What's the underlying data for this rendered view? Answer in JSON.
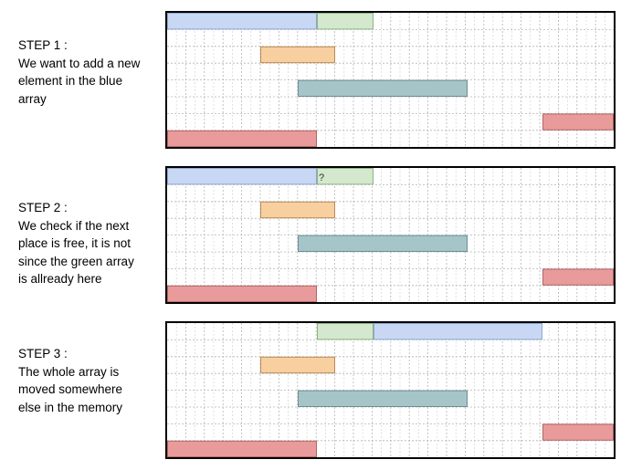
{
  "steps": [
    {
      "title": "STEP 1 :",
      "body": "We want to add a new\nelement in the blue\narray",
      "question_mark": ""
    },
    {
      "title": "STEP 2 :",
      "body": "We check if the next\nplace is free, it is not\nsince the green array\nis allready here",
      "question_mark": "?"
    },
    {
      "title": "STEP 3 :",
      "body": "The whole array is\nmoved somewhere\nelse in the memory",
      "question_mark": ""
    }
  ],
  "colors": {
    "blue": "#c8d8f4",
    "blue_stroke": "#8ea6cf",
    "green": "#d3e8cc",
    "green_stroke": "#8fb286",
    "orange": "#f8cf9f",
    "orange_stroke": "#b88a5a",
    "teal": "#a5c5c9",
    "teal_stroke": "#6e8d91",
    "red": "#e99a9a",
    "red_stroke": "#b26464",
    "grid_major": "#b5b5b5",
    "grid_minor": "#d9d9d9"
  }
}
